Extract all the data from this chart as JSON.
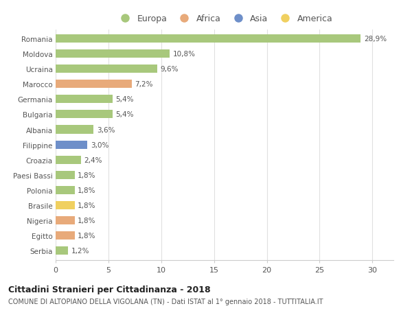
{
  "countries": [
    "Romania",
    "Moldova",
    "Ucraina",
    "Marocco",
    "Germania",
    "Bulgaria",
    "Albania",
    "Filippine",
    "Croazia",
    "Paesi Bassi",
    "Polonia",
    "Brasile",
    "Nigeria",
    "Egitto",
    "Serbia"
  ],
  "values": [
    28.9,
    10.8,
    9.6,
    7.2,
    5.4,
    5.4,
    3.6,
    3.0,
    2.4,
    1.8,
    1.8,
    1.8,
    1.8,
    1.8,
    1.2
  ],
  "labels": [
    "28,9%",
    "10,8%",
    "9,6%",
    "7,2%",
    "5,4%",
    "5,4%",
    "3,6%",
    "3,0%",
    "2,4%",
    "1,8%",
    "1,8%",
    "1,8%",
    "1,8%",
    "1,8%",
    "1,2%"
  ],
  "continents": [
    "Europa",
    "Europa",
    "Europa",
    "Africa",
    "Europa",
    "Europa",
    "Europa",
    "Asia",
    "Europa",
    "Europa",
    "Europa",
    "America",
    "Africa",
    "Africa",
    "Europa"
  ],
  "continent_colors": {
    "Europa": "#a8c87c",
    "Africa": "#e8aa7a",
    "Asia": "#6e8fc9",
    "America": "#f0d060"
  },
  "legend_order": [
    "Europa",
    "Africa",
    "Asia",
    "America"
  ],
  "xlim": [
    0,
    32
  ],
  "xticks": [
    0,
    5,
    10,
    15,
    20,
    25,
    30
  ],
  "title_main": "Cittadini Stranieri per Cittadinanza - 2018",
  "title_sub": "COMUNE DI ALTOPIANO DELLA VIGOLANA (TN) - Dati ISTAT al 1° gennaio 2018 - TUTTITALIA.IT",
  "bg_color": "#ffffff",
  "bar_height": 0.55,
  "label_fontsize": 7.5,
  "ytick_fontsize": 7.5,
  "xtick_fontsize": 8.0,
  "legend_fontsize": 9.0,
  "grid_color": "#e0e0e0",
  "text_color": "#555555",
  "title_color": "#222222"
}
